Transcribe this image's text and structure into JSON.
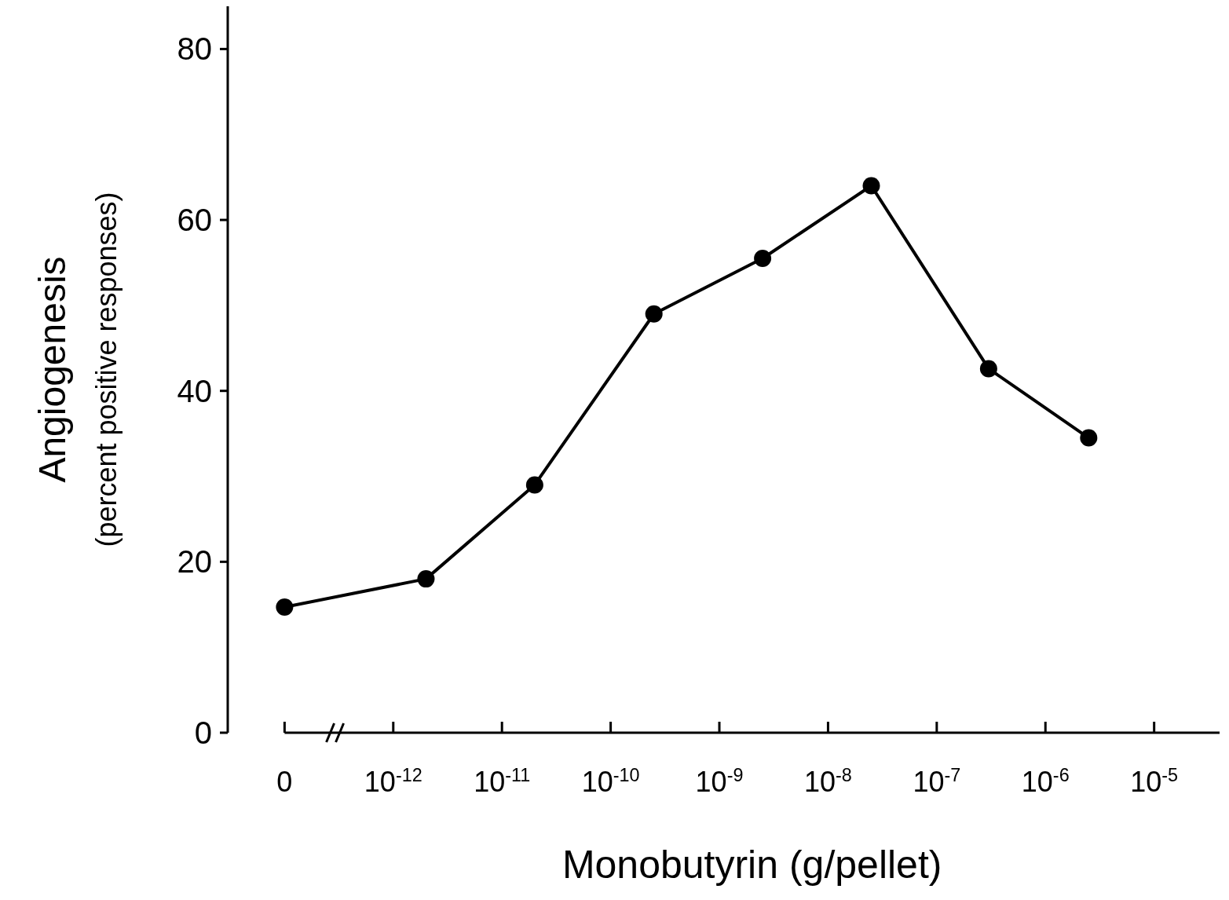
{
  "chart_data": {
    "type": "line",
    "xlabel": "Monobutyrin (g/pellet)",
    "ylabel": "Angiogenesis\n(percent positive responses)",
    "x": [
      1e-13,
      2e-12,
      2e-11,
      2.5e-10,
      2.5e-09,
      2.5e-08,
      3e-07,
      2.5e-06
    ],
    "series": [
      {
        "color": "#000000",
        "values": [
          14.7,
          18,
          29,
          49,
          55.5,
          64,
          42.6,
          34.5
        ]
      }
    ],
    "xlim": [
      3e-14,
      4e-05
    ],
    "ylim": [
      0,
      85
    ],
    "log": "x",
    "xticks": [
      {
        "value": 1e-13,
        "label": "0"
      },
      {
        "value": 1e-12,
        "label": "10$^{-12}$"
      },
      {
        "value": 1e-11,
        "label": "10$^{-11}$"
      },
      {
        "value": 1e-10,
        "label": "10$^{-10}$"
      },
      {
        "value": 1e-09,
        "label": "10$^{-9}$"
      },
      {
        "value": 1e-08,
        "label": "10$^{-8}$"
      },
      {
        "value": 1e-07,
        "label": "10$^{-7}$"
      },
      {
        "value": 1e-06,
        "label": "10$^{-6}$"
      },
      {
        "value": 1e-05,
        "label": "10$^{-5}$"
      }
    ],
    "yticks": [
      0,
      20,
      40,
      60,
      80
    ],
    "grid": false,
    "marker": "circle",
    "line_style": "solid"
  }
}
